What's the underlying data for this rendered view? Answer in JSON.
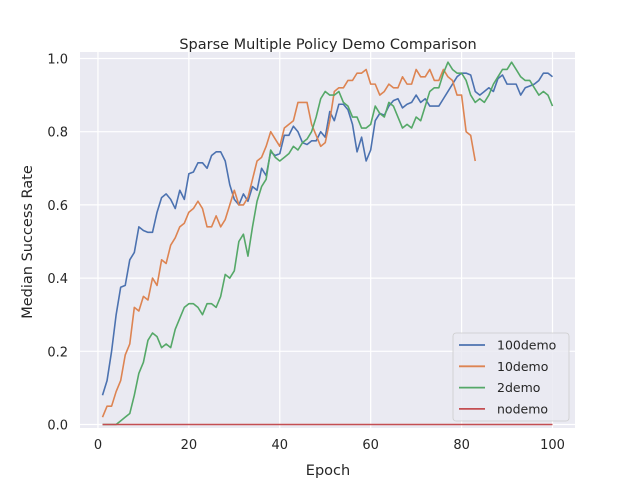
{
  "chart_data": {
    "type": "line",
    "title": "Sparse Multiple Policy Demo Comparison",
    "xlabel": "Epoch",
    "ylabel": "Median Success Rate",
    "xlim": [
      -3.95,
      104.95
    ],
    "ylim": [
      0.0,
      1.0
    ],
    "xticks": [
      0,
      20,
      40,
      60,
      80,
      100
    ],
    "xtick_labels": [
      "0",
      "20",
      "40",
      "60",
      "80",
      "100"
    ],
    "yticks": [
      0.0,
      0.2,
      0.4,
      0.6,
      0.8,
      1.0
    ],
    "ytick_labels": [
      "0.0",
      "0.2",
      "0.4",
      "0.6",
      "0.8",
      "1.0"
    ],
    "grid": true,
    "background": "#eaeaf2",
    "legend_position": "lower-right",
    "series": [
      {
        "name": "100demo",
        "color": "#4c72b0",
        "x": [
          1,
          2,
          3,
          4,
          5,
          6,
          7,
          8,
          9,
          10,
          11,
          12,
          13,
          14,
          15,
          16,
          17,
          18,
          19,
          20,
          21,
          22,
          23,
          24,
          25,
          26,
          27,
          28,
          29,
          30,
          31,
          32,
          33,
          34,
          35,
          36,
          37,
          38,
          39,
          40,
          41,
          42,
          43,
          44,
          45,
          46,
          47,
          48,
          49,
          50,
          51,
          52,
          53,
          54,
          55,
          56,
          57,
          58,
          59,
          60,
          61,
          62,
          63,
          64,
          65,
          66,
          67,
          68,
          69,
          70,
          71,
          72,
          73,
          74,
          75,
          76,
          77,
          78,
          79,
          80,
          81,
          82,
          83,
          84,
          85,
          86,
          87,
          88,
          89,
          90,
          91,
          92,
          93,
          94,
          95,
          96,
          97,
          98,
          99,
          100
        ],
        "y": [
          0.08,
          0.12,
          0.2,
          0.3,
          0.375,
          0.38,
          0.45,
          0.47,
          0.54,
          0.53,
          0.525,
          0.525,
          0.58,
          0.62,
          0.63,
          0.615,
          0.59,
          0.64,
          0.615,
          0.685,
          0.69,
          0.715,
          0.715,
          0.7,
          0.735,
          0.745,
          0.745,
          0.72,
          0.655,
          0.615,
          0.6,
          0.63,
          0.61,
          0.65,
          0.64,
          0.7,
          0.68,
          0.745,
          0.735,
          0.74,
          0.79,
          0.79,
          0.815,
          0.8,
          0.77,
          0.765,
          0.775,
          0.775,
          0.8,
          0.785,
          0.855,
          0.83,
          0.875,
          0.875,
          0.86,
          0.82,
          0.745,
          0.785,
          0.72,
          0.75,
          0.83,
          0.85,
          0.845,
          0.87,
          0.885,
          0.89,
          0.865,
          0.875,
          0.88,
          0.9,
          0.88,
          0.89,
          0.87,
          0.87,
          0.87,
          0.89,
          0.91,
          0.93,
          0.95,
          0.96,
          0.96,
          0.955,
          0.91,
          0.9,
          0.91,
          0.92,
          0.91,
          0.945,
          0.955,
          0.93,
          0.93,
          0.93,
          0.9,
          0.92,
          0.925,
          0.93,
          0.94,
          0.96,
          0.96,
          0.95
        ]
      },
      {
        "name": "10demo",
        "color": "#dd8452",
        "x": [
          1,
          2,
          3,
          4,
          5,
          6,
          7,
          8,
          9,
          10,
          11,
          12,
          13,
          14,
          15,
          16,
          17,
          18,
          19,
          20,
          21,
          22,
          23,
          24,
          25,
          26,
          27,
          28,
          29,
          30,
          31,
          32,
          33,
          34,
          35,
          36,
          37,
          38,
          39,
          40,
          41,
          42,
          43,
          44,
          45,
          46,
          47,
          48,
          49,
          50,
          51,
          52,
          53,
          54,
          55,
          56,
          57,
          58,
          59,
          60,
          61,
          62,
          63,
          64,
          65,
          66,
          67,
          68,
          69,
          70,
          71,
          72,
          73,
          74,
          75,
          76,
          77,
          78,
          79,
          80,
          81,
          82,
          83
        ],
        "y": [
          0.02,
          0.05,
          0.05,
          0.09,
          0.12,
          0.19,
          0.22,
          0.32,
          0.31,
          0.35,
          0.34,
          0.4,
          0.38,
          0.45,
          0.44,
          0.49,
          0.51,
          0.54,
          0.55,
          0.58,
          0.59,
          0.61,
          0.59,
          0.54,
          0.54,
          0.57,
          0.54,
          0.56,
          0.6,
          0.64,
          0.6,
          0.6,
          0.62,
          0.67,
          0.72,
          0.73,
          0.76,
          0.8,
          0.78,
          0.76,
          0.81,
          0.82,
          0.83,
          0.88,
          0.88,
          0.88,
          0.82,
          0.79,
          0.76,
          0.77,
          0.83,
          0.91,
          0.92,
          0.92,
          0.94,
          0.94,
          0.96,
          0.96,
          0.97,
          0.93,
          0.93,
          0.9,
          0.91,
          0.93,
          0.92,
          0.92,
          0.95,
          0.93,
          0.93,
          0.97,
          0.95,
          0.95,
          0.97,
          0.94,
          0.94,
          0.97,
          0.95,
          0.94,
          0.9,
          0.9,
          0.8,
          0.79,
          0.72
        ]
      },
      {
        "name": "2demo",
        "color": "#55a868",
        "x": [
          1,
          2,
          3,
          4,
          5,
          6,
          7,
          8,
          9,
          10,
          11,
          12,
          13,
          14,
          15,
          16,
          17,
          18,
          19,
          20,
          21,
          22,
          23,
          24,
          25,
          26,
          27,
          28,
          29,
          30,
          31,
          32,
          33,
          34,
          35,
          36,
          37,
          38,
          39,
          40,
          41,
          42,
          43,
          44,
          45,
          46,
          47,
          48,
          49,
          50,
          51,
          52,
          53,
          54,
          55,
          56,
          57,
          58,
          59,
          60,
          61,
          62,
          63,
          64,
          65,
          66,
          67,
          68,
          69,
          70,
          71,
          72,
          73,
          74,
          75,
          76,
          77,
          78,
          79,
          80,
          81,
          82,
          83,
          84,
          85,
          86,
          87,
          88,
          89,
          90,
          91,
          92,
          93,
          94,
          95,
          96,
          97,
          98,
          99,
          100
        ],
        "y": [
          0.0,
          0.0,
          0.0,
          0.0,
          0.01,
          0.02,
          0.03,
          0.08,
          0.14,
          0.17,
          0.23,
          0.25,
          0.24,
          0.21,
          0.22,
          0.21,
          0.26,
          0.29,
          0.32,
          0.33,
          0.33,
          0.32,
          0.3,
          0.33,
          0.33,
          0.32,
          0.35,
          0.41,
          0.4,
          0.42,
          0.5,
          0.52,
          0.46,
          0.54,
          0.61,
          0.65,
          0.67,
          0.75,
          0.73,
          0.72,
          0.73,
          0.74,
          0.76,
          0.75,
          0.77,
          0.78,
          0.8,
          0.84,
          0.89,
          0.91,
          0.9,
          0.9,
          0.91,
          0.88,
          0.87,
          0.84,
          0.84,
          0.81,
          0.81,
          0.82,
          0.87,
          0.85,
          0.84,
          0.88,
          0.87,
          0.84,
          0.81,
          0.82,
          0.81,
          0.84,
          0.83,
          0.87,
          0.91,
          0.92,
          0.92,
          0.96,
          0.99,
          0.97,
          0.96,
          0.96,
          0.94,
          0.9,
          0.88,
          0.89,
          0.88,
          0.9,
          0.93,
          0.95,
          0.97,
          0.97,
          0.99,
          0.97,
          0.95,
          0.94,
          0.94,
          0.92,
          0.9,
          0.91,
          0.9,
          0.87
        ]
      },
      {
        "name": "nodemo",
        "color": "#c44e52",
        "x": [
          1,
          100
        ],
        "y": [
          0.0,
          0.0
        ]
      }
    ]
  }
}
